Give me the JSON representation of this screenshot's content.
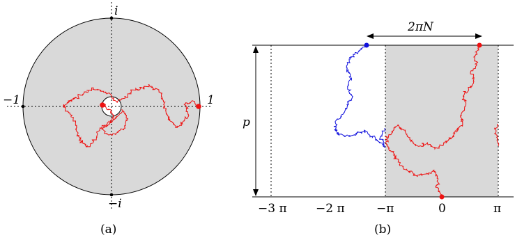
{
  "panel_a": {
    "caption": "(a)",
    "labels": {
      "top": "i",
      "bottom": "−i",
      "left": "−1",
      "right": "1"
    }
  },
  "panel_b": {
    "caption": "(b)",
    "period_label": "2πN",
    "height_label": "p",
    "ticks": [
      "−3 π",
      "−2 π",
      "−π",
      "0",
      "π"
    ]
  },
  "colors": {
    "region": "#d9d9d9",
    "path_red": "#ee1111",
    "path_blue": "#1111dd",
    "point_red": "#ee1111",
    "point_blue": "#1111dd"
  }
}
